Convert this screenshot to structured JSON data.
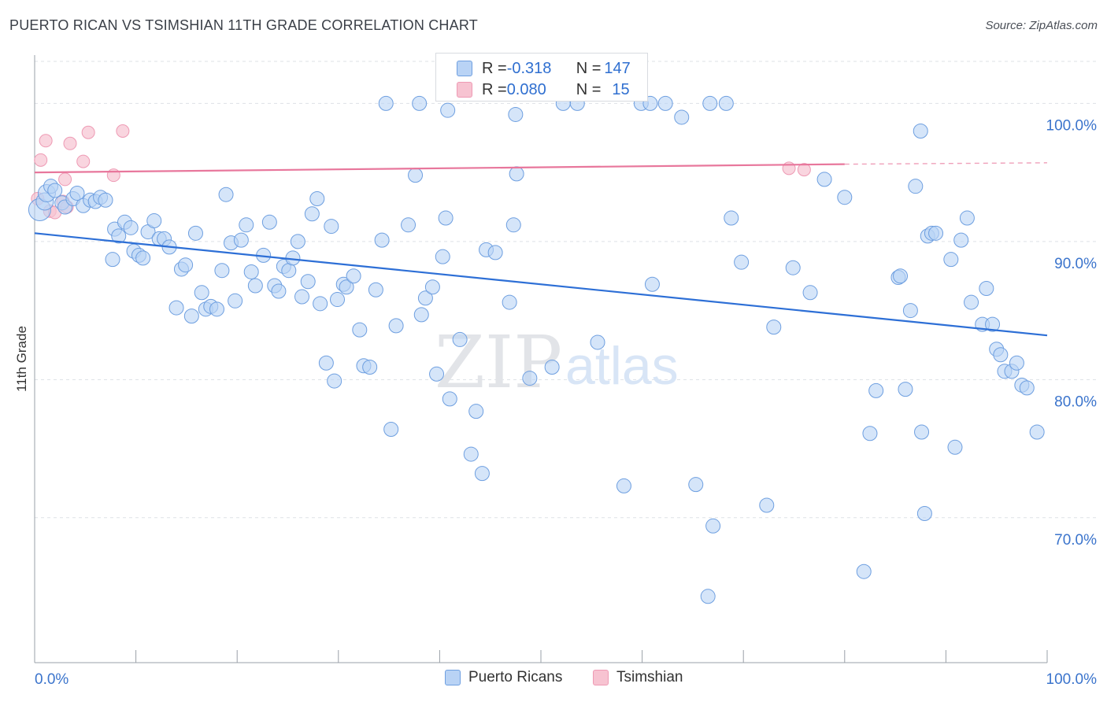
{
  "title": "PUERTO RICAN VS TSIMSHIAN 11TH GRADE CORRELATION CHART",
  "source": "Source: ZipAtlas.com",
  "watermark": {
    "zip": "ZIP",
    "atlas": "atlas"
  },
  "colors": {
    "blue_fill": "#b9d3f5",
    "blue_stroke": "#6e9fe0",
    "blue_line": "#2d6fd6",
    "pink_fill": "#f7c3d1",
    "pink_stroke": "#ee9ab4",
    "pink_line": "#e8779c",
    "axis_text": "#3b74cc",
    "grid": "#dde1e6"
  },
  "legend": {
    "rows": [
      {
        "r_label": "R = ",
        "r_value": "-0.318",
        "n_label": "N = ",
        "n_value": "147"
      },
      {
        "r_label": "R = ",
        "r_value": "0.080",
        "n_label": "N = ",
        "n_value": "15"
      }
    ]
  },
  "bottom_legend": [
    "Puerto Ricans",
    "Tsimshian"
  ],
  "chart_data": {
    "type": "scatter",
    "ylabel": "11th Grade",
    "xlim": [
      0,
      100
    ],
    "ylim": [
      59.5,
      103.5
    ],
    "x_tick_labels": [
      "0.0%",
      "100.0%"
    ],
    "y_ticks": [
      70,
      80,
      90,
      100
    ],
    "y_tick_labels": [
      "70.0%",
      "80.0%",
      "90.0%",
      "100.0%"
    ],
    "series": [
      {
        "name": "Puerto Ricans",
        "trend": {
          "x": [
            0,
            100
          ],
          "y": [
            90.6,
            83.2
          ]
        },
        "points": [
          [
            0.5,
            92.3
          ],
          [
            1.0,
            92.9
          ],
          [
            1.2,
            93.5
          ],
          [
            1.6,
            94.0
          ],
          [
            2.0,
            93.7
          ],
          [
            2.7,
            92.8
          ],
          [
            3.0,
            92.5
          ],
          [
            3.8,
            93.1
          ],
          [
            4.2,
            93.5
          ],
          [
            4.8,
            92.6
          ],
          [
            5.5,
            93.0
          ],
          [
            6.0,
            92.9
          ],
          [
            6.5,
            93.2
          ],
          [
            7.0,
            93.0
          ],
          [
            7.7,
            88.7
          ],
          [
            7.9,
            90.9
          ],
          [
            8.3,
            90.4
          ],
          [
            8.9,
            91.4
          ],
          [
            9.5,
            91.0
          ],
          [
            9.8,
            89.3
          ],
          [
            10.3,
            89.0
          ],
          [
            10.7,
            88.8
          ],
          [
            11.2,
            90.7
          ],
          [
            11.8,
            91.5
          ],
          [
            12.3,
            90.2
          ],
          [
            12.8,
            90.2
          ],
          [
            13.3,
            89.6
          ],
          [
            14.0,
            85.2
          ],
          [
            14.5,
            88.0
          ],
          [
            14.9,
            88.3
          ],
          [
            15.5,
            84.6
          ],
          [
            15.9,
            90.6
          ],
          [
            16.5,
            86.3
          ],
          [
            16.9,
            85.1
          ],
          [
            17.4,
            85.3
          ],
          [
            18.0,
            85.1
          ],
          [
            18.5,
            87.9
          ],
          [
            18.9,
            93.4
          ],
          [
            19.4,
            89.9
          ],
          [
            19.8,
            85.7
          ],
          [
            20.4,
            90.1
          ],
          [
            20.9,
            91.2
          ],
          [
            21.4,
            87.8
          ],
          [
            21.8,
            86.8
          ],
          [
            22.6,
            89.0
          ],
          [
            23.2,
            91.4
          ],
          [
            23.7,
            86.8
          ],
          [
            24.1,
            86.4
          ],
          [
            24.6,
            88.2
          ],
          [
            25.1,
            87.9
          ],
          [
            25.5,
            88.8
          ],
          [
            26.0,
            90.0
          ],
          [
            26.4,
            86.0
          ],
          [
            27.0,
            87.1
          ],
          [
            27.4,
            92.0
          ],
          [
            27.9,
            93.1
          ],
          [
            28.2,
            85.5
          ],
          [
            28.8,
            81.2
          ],
          [
            29.3,
            91.1
          ],
          [
            29.6,
            79.9
          ],
          [
            29.9,
            85.8
          ],
          [
            30.5,
            86.9
          ],
          [
            30.8,
            86.7
          ],
          [
            31.5,
            87.5
          ],
          [
            32.1,
            83.6
          ],
          [
            32.5,
            81.0
          ],
          [
            33.1,
            80.9
          ],
          [
            33.7,
            86.5
          ],
          [
            34.3,
            90.1
          ],
          [
            34.7,
            100.0
          ],
          [
            35.2,
            76.4
          ],
          [
            35.7,
            83.9
          ],
          [
            36.9,
            91.2
          ],
          [
            37.6,
            94.8
          ],
          [
            38.2,
            84.7
          ],
          [
            38.6,
            85.9
          ],
          [
            39.3,
            86.7
          ],
          [
            39.7,
            80.4
          ],
          [
            40.3,
            88.9
          ],
          [
            40.6,
            91.7
          ],
          [
            41.0,
            78.6
          ],
          [
            42.0,
            82.9
          ],
          [
            43.1,
            74.6
          ],
          [
            43.6,
            77.7
          ],
          [
            44.2,
            73.2
          ],
          [
            44.6,
            89.4
          ],
          [
            45.5,
            89.2
          ],
          [
            46.9,
            85.6
          ],
          [
            47.3,
            91.2
          ],
          [
            47.6,
            94.9
          ],
          [
            48.9,
            80.1
          ],
          [
            51.1,
            80.9
          ],
          [
            55.6,
            82.7
          ],
          [
            58.2,
            72.3
          ],
          [
            59.9,
            100.0
          ],
          [
            61.0,
            86.9
          ],
          [
            62.3,
            100.0
          ],
          [
            65.3,
            72.4
          ],
          [
            66.7,
            100.0
          ],
          [
            67.0,
            69.4
          ],
          [
            68.3,
            100.0
          ],
          [
            68.8,
            91.7
          ],
          [
            69.8,
            88.5
          ],
          [
            66.5,
            64.3
          ],
          [
            72.3,
            70.9
          ],
          [
            73.0,
            83.8
          ],
          [
            74.9,
            88.1
          ],
          [
            76.6,
            86.3
          ],
          [
            78.0,
            94.5
          ],
          [
            80.0,
            93.2
          ],
          [
            81.9,
            66.1
          ],
          [
            82.5,
            76.1
          ],
          [
            83.1,
            79.2
          ],
          [
            85.3,
            87.4
          ],
          [
            85.5,
            87.5
          ],
          [
            86.0,
            79.3
          ],
          [
            86.5,
            85.0
          ],
          [
            87.0,
            94.0
          ],
          [
            87.6,
            76.2
          ],
          [
            87.9,
            70.3
          ],
          [
            88.2,
            90.4
          ],
          [
            88.6,
            90.6
          ],
          [
            89.0,
            90.6
          ],
          [
            90.5,
            88.7
          ],
          [
            90.9,
            75.1
          ],
          [
            91.5,
            90.1
          ],
          [
            92.1,
            91.7
          ],
          [
            92.5,
            85.6
          ],
          [
            93.6,
            84.0
          ],
          [
            94.0,
            86.6
          ],
          [
            94.6,
            84.0
          ],
          [
            95.0,
            82.2
          ],
          [
            95.4,
            81.8
          ],
          [
            95.8,
            80.6
          ],
          [
            96.5,
            80.6
          ],
          [
            97.0,
            81.2
          ],
          [
            97.5,
            79.6
          ],
          [
            98.0,
            79.4
          ],
          [
            99.0,
            76.2
          ],
          [
            38.0,
            100.0
          ],
          [
            52.2,
            100.0
          ],
          [
            87.5,
            98.0
          ],
          [
            63.9,
            99.0
          ],
          [
            47.5,
            99.2
          ],
          [
            60.8,
            100.0
          ],
          [
            40.8,
            99.5
          ],
          [
            53.6,
            100.0
          ]
        ]
      },
      {
        "name": "Tsimshian",
        "trend": {
          "x": [
            0,
            80,
            100
          ],
          "y": [
            95.0,
            95.6,
            95.7
          ]
        },
        "points": [
          [
            0.3,
            93.1
          ],
          [
            0.6,
            95.9
          ],
          [
            1.1,
            97.3
          ],
          [
            1.5,
            92.2
          ],
          [
            2.0,
            92.1
          ],
          [
            2.8,
            92.9
          ],
          [
            3.0,
            94.5
          ],
          [
            3.2,
            92.5
          ],
          [
            3.5,
            97.1
          ],
          [
            4.8,
            95.8
          ],
          [
            5.3,
            97.9
          ],
          [
            7.8,
            94.8
          ],
          [
            8.7,
            98.0
          ],
          [
            74.5,
            95.3
          ],
          [
            76.0,
            95.2
          ]
        ]
      }
    ]
  }
}
